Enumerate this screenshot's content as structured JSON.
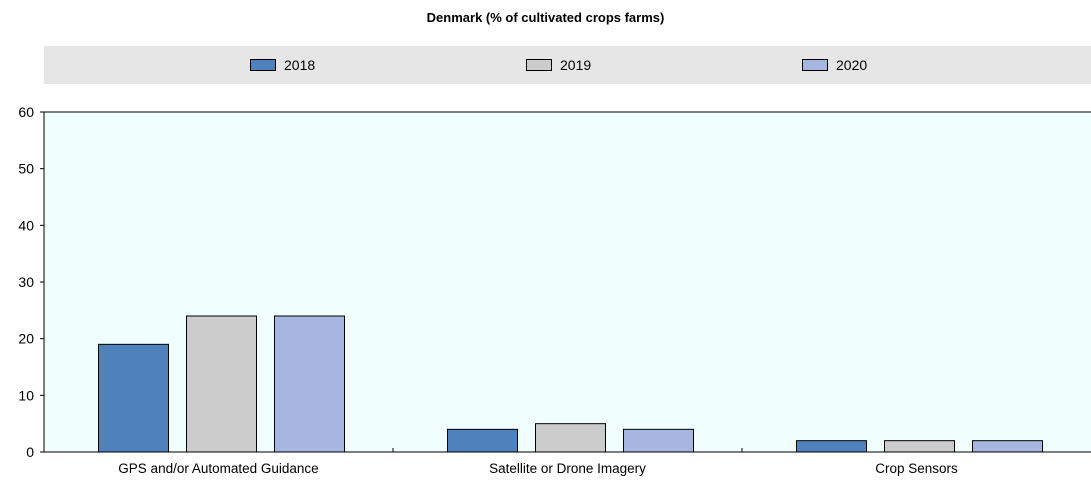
{
  "chart_data": {
    "type": "bar",
    "title": "Denmark (% of cultivated crops farms)",
    "categories": [
      "GPS and/or Automated Guidance",
      "Satellite or Drone Imagery",
      "Crop Sensors"
    ],
    "series": [
      {
        "name": "2018",
        "values": [
          19,
          4,
          2
        ],
        "color": "#4f81bd"
      },
      {
        "name": "2019",
        "values": [
          24,
          5,
          2
        ],
        "color": "#cccccc"
      },
      {
        "name": "2020",
        "values": [
          24,
          4,
          2
        ],
        "color": "#a6b6e0"
      }
    ],
    "ylim": [
      0,
      60
    ],
    "yticks": [
      "0",
      "10",
      "20",
      "30",
      "40",
      "50",
      "60"
    ],
    "grid": false,
    "legend_position": "top",
    "plot_background": "#f0fffe"
  }
}
